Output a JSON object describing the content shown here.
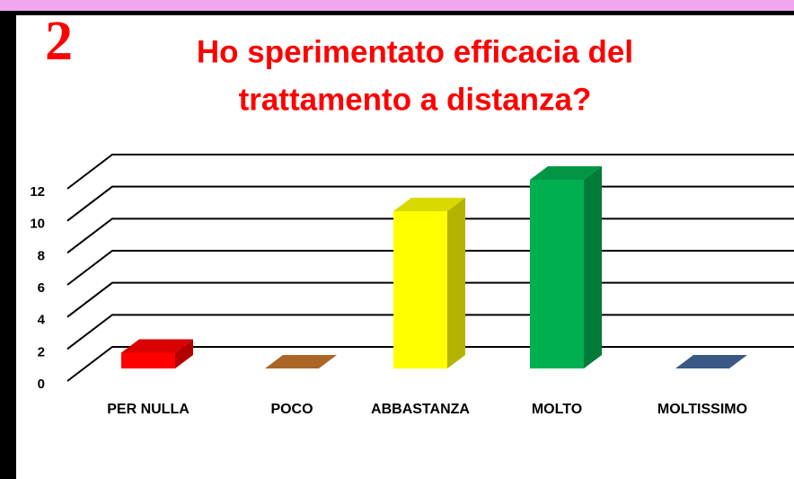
{
  "chart_data": {
    "type": "bar3d",
    "badge": "2",
    "title": [
      "Ho sperimentato efficacia del",
      "trattamento a distanza?"
    ],
    "categories": [
      "PER NULLA",
      "POCO",
      "ABBASTANZA",
      "MOLTO",
      "MOLTISSIMO"
    ],
    "values": [
      1,
      0,
      10,
      12,
      0
    ],
    "colors": [
      "#ff0000",
      "#c8782e",
      "#ffff00",
      "#00b050",
      "#44699b"
    ],
    "ylim": [
      0,
      12
    ],
    "yticks": [
      0,
      2,
      4,
      6,
      8,
      10,
      12
    ],
    "grid": true
  }
}
